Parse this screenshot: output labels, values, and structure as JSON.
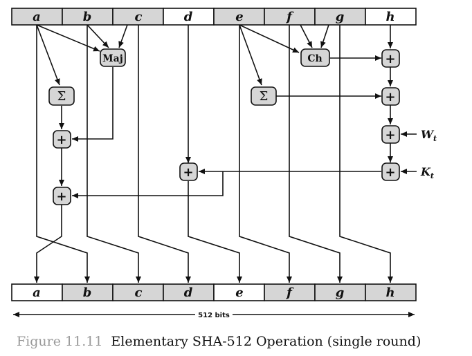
{
  "registers_in": [
    {
      "label": "a",
      "shaded": true
    },
    {
      "label": "b",
      "shaded": true
    },
    {
      "label": "c",
      "shaded": true
    },
    {
      "label": "d",
      "shaded": false
    },
    {
      "label": "e",
      "shaded": true
    },
    {
      "label": "f",
      "shaded": true
    },
    {
      "label": "g",
      "shaded": true
    },
    {
      "label": "h",
      "shaded": false
    }
  ],
  "registers_out": [
    {
      "label": "a",
      "shaded": false
    },
    {
      "label": "b",
      "shaded": true
    },
    {
      "label": "c",
      "shaded": true
    },
    {
      "label": "d",
      "shaded": true
    },
    {
      "label": "e",
      "shaded": false
    },
    {
      "label": "f",
      "shaded": true
    },
    {
      "label": "g",
      "shaded": true
    },
    {
      "label": "h",
      "shaded": true
    }
  ],
  "operations": {
    "maj": "Maj",
    "ch": "Ch",
    "sigma": "Σ",
    "plus": "+"
  },
  "inputs": {
    "w": "W",
    "w_sub": "t",
    "k": "K",
    "k_sub": "t"
  },
  "width_label": "512 bits",
  "caption": {
    "number": "Figure 11.11",
    "text": "Elementary SHA-512 Operation (single round)"
  },
  "colors": {
    "shaded": "#d6d6d6",
    "plain": "#ffffff",
    "line": "#111111",
    "caption_number": "#9a9a9a"
  }
}
